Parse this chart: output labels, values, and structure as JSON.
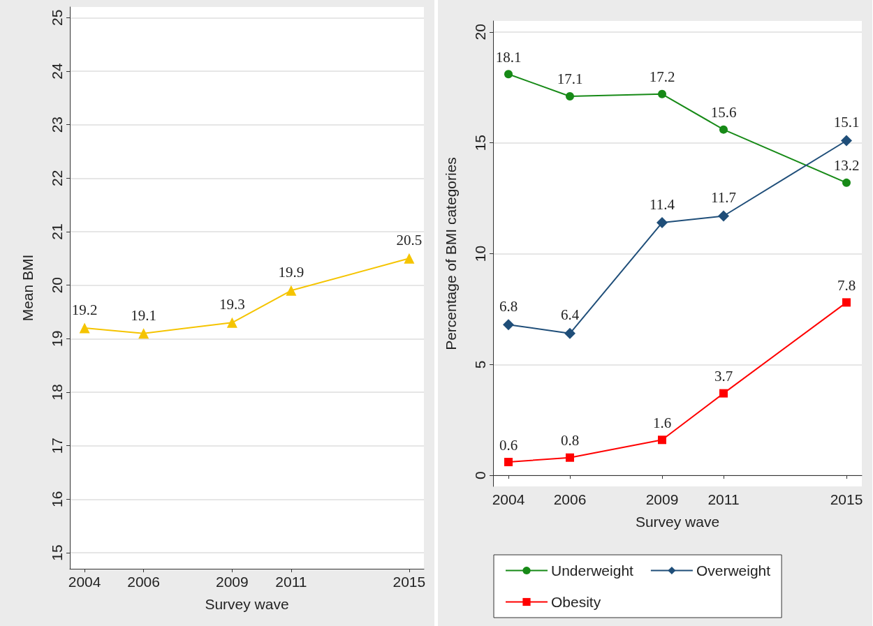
{
  "chart_data": [
    {
      "type": "line",
      "xlabel": "Survey wave",
      "ylabel": "Mean BMI",
      "x": [
        2004,
        2006,
        2009,
        2011,
        2015
      ],
      "xlim": [
        2003.5,
        2015.5
      ],
      "xticks": [
        2004,
        2006,
        2009,
        2011,
        2015
      ],
      "ylim": [
        14.7,
        25.2
      ],
      "yticks": [
        15,
        16,
        17,
        18,
        19,
        20,
        21,
        22,
        23,
        24,
        25
      ],
      "grid": "y",
      "data_labels": true,
      "legend": false,
      "series": [
        {
          "color": "#f5c400",
          "marker": "triangle",
          "values": [
            19.2,
            19.1,
            19.3,
            19.9,
            20.5
          ]
        }
      ]
    },
    {
      "type": "line",
      "xlabel": "Survey wave",
      "ylabel": "Percentage of BMI categories",
      "x": [
        2004,
        2006,
        2009,
        2011,
        2015
      ],
      "xlim": [
        2003.5,
        2015.5
      ],
      "xticks": [
        2004,
        2006,
        2009,
        2011,
        2015
      ],
      "ylim": [
        -0.5,
        20.5
      ],
      "yticks": [
        0,
        5,
        10,
        15,
        20
      ],
      "grid": "y",
      "data_labels": true,
      "legend": "bottom",
      "series": [
        {
          "name": "Underweight",
          "color": "#178a17",
          "marker": "circle",
          "values": [
            18.1,
            17.1,
            17.2,
            15.6,
            13.2
          ]
        },
        {
          "name": "Overweight",
          "color": "#1f4e79",
          "marker": "diamond",
          "values": [
            6.8,
            6.4,
            11.4,
            11.7,
            15.1
          ]
        },
        {
          "name": "Obesity",
          "color": "#ff0000",
          "marker": "square",
          "values": [
            0.6,
            0.8,
            1.6,
            3.7,
            7.8
          ]
        }
      ]
    }
  ]
}
